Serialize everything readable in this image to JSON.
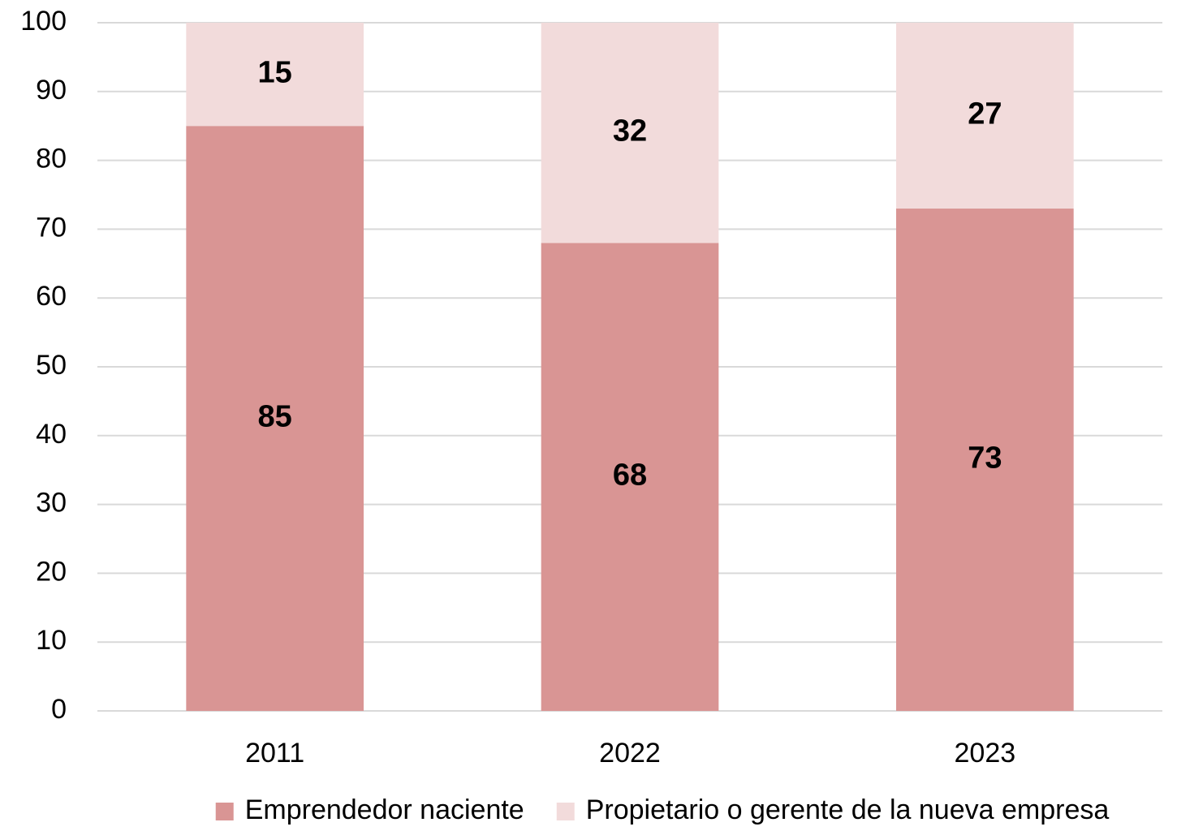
{
  "chart_data": {
    "type": "stacked_bar",
    "categories": [
      "2011",
      "2022",
      "2023"
    ],
    "series": [
      {
        "name": "Emprendedor naciente",
        "color": "#d99594",
        "values": [
          85,
          68,
          73
        ]
      },
      {
        "name": "Propietario o gerente de la nueva empresa",
        "color": "#f2dbdb",
        "values": [
          15,
          32,
          27
        ]
      }
    ],
    "ylim": [
      0,
      100
    ],
    "yticks": [
      0,
      10,
      20,
      30,
      40,
      50,
      60,
      70,
      80,
      90,
      100
    ],
    "grid": true,
    "legend": "bottom"
  }
}
